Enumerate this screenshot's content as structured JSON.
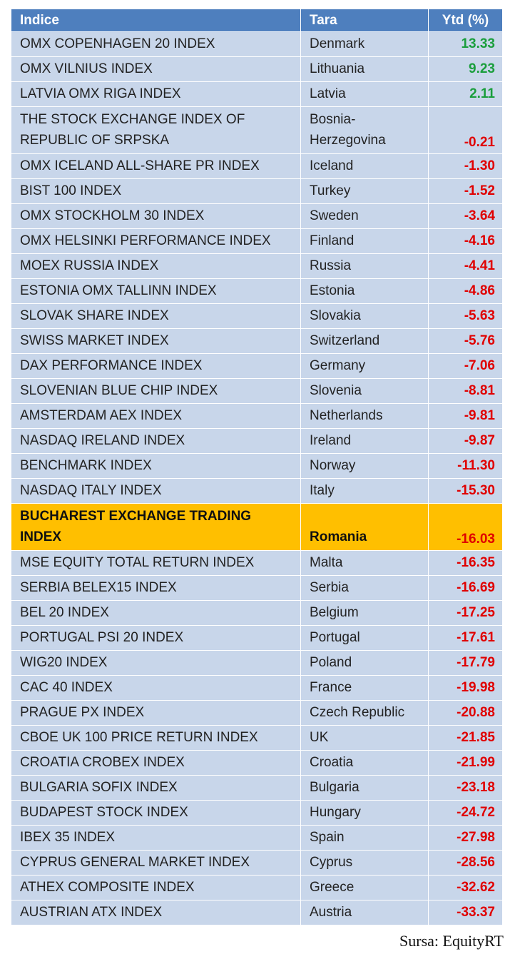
{
  "header": {
    "index_label": "Indice",
    "country_label": "Tara",
    "ytd_label": "Ytd (%)"
  },
  "colors": {
    "header_bg": "#4e7fbe",
    "row_bg": "#c8d6ea",
    "highlight_bg": "#ffbf00",
    "positive": "#1a9e3c",
    "negative": "#e00000"
  },
  "rows": [
    {
      "index": "OMX COPENHAGEN 20 INDEX",
      "country": "Denmark",
      "ytd": "13.33"
    },
    {
      "index": "OMX VILNIUS INDEX",
      "country": "Lithuania",
      "ytd": "9.23"
    },
    {
      "index": "LATVIA OMX RIGA INDEX",
      "country": "Latvia",
      "ytd": "2.11"
    },
    {
      "index": "THE STOCK EXCHANGE INDEX OF REPUBLIC OF SRPSKA",
      "country": "Bosnia-Herzegovina",
      "ytd": "-0.21"
    },
    {
      "index": "OMX ICELAND ALL-SHARE PR INDEX",
      "country": "Iceland",
      "ytd": "-1.30"
    },
    {
      "index": "BIST 100 INDEX",
      "country": "Turkey",
      "ytd": "-1.52"
    },
    {
      "index": "OMX STOCKHOLM 30 INDEX",
      "country": "Sweden",
      "ytd": "-3.64"
    },
    {
      "index": "OMX HELSINKI PERFORMANCE INDEX",
      "country": "Finland",
      "ytd": "-4.16"
    },
    {
      "index": "MOEX RUSSIA INDEX",
      "country": "Russia",
      "ytd": "-4.41"
    },
    {
      "index": "ESTONIA OMX TALLINN INDEX",
      "country": "Estonia",
      "ytd": "-4.86"
    },
    {
      "index": "SLOVAK SHARE INDEX",
      "country": "Slovakia",
      "ytd": "-5.63"
    },
    {
      "index": "SWISS MARKET INDEX",
      "country": "Switzerland",
      "ytd": "-5.76"
    },
    {
      "index": "DAX PERFORMANCE INDEX",
      "country": "Germany",
      "ytd": "-7.06"
    },
    {
      "index": "SLOVENIAN BLUE CHIP INDEX",
      "country": "Slovenia",
      "ytd": "-8.81"
    },
    {
      "index": "AMSTERDAM AEX INDEX",
      "country": "Netherlands",
      "ytd": "-9.81"
    },
    {
      "index": "NASDAQ IRELAND INDEX",
      "country": "Ireland",
      "ytd": "-9.87"
    },
    {
      "index": "BENCHMARK INDEX",
      "country": "Norway",
      "ytd": "-11.30"
    },
    {
      "index": "NASDAQ ITALY INDEX",
      "country": "Italy",
      "ytd": "-15.30"
    },
    {
      "index": "BUCHAREST EXCHANGE TRADING INDEX",
      "country": "Romania",
      "ytd": "-16.03",
      "highlight": true
    },
    {
      "index": "MSE EQUITY TOTAL RETURN INDEX",
      "country": "Malta",
      "ytd": "-16.35"
    },
    {
      "index": "SERBIA BELEX15 INDEX",
      "country": "Serbia",
      "ytd": "-16.69"
    },
    {
      "index": "BEL 20 INDEX",
      "country": "Belgium",
      "ytd": "-17.25"
    },
    {
      "index": "PORTUGAL PSI 20 INDEX",
      "country": "Portugal",
      "ytd": "-17.61"
    },
    {
      "index": "WIG20 INDEX",
      "country": "Poland",
      "ytd": "-17.79"
    },
    {
      "index": "CAC 40 INDEX",
      "country": "France",
      "ytd": "-19.98"
    },
    {
      "index": "PRAGUE PX INDEX",
      "country": "Czech Republic",
      "ytd": "-20.88"
    },
    {
      "index": "CBOE UK 100 PRICE RETURN INDEX",
      "country": "UK",
      "ytd": "-21.85"
    },
    {
      "index": "CROATIA CROBEX INDEX",
      "country": "Croatia",
      "ytd": "-21.99"
    },
    {
      "index": "BULGARIA SOFIX INDEX",
      "country": "Bulgaria",
      "ytd": "-23.18"
    },
    {
      "index": "BUDAPEST STOCK INDEX",
      "country": "Hungary",
      "ytd": "-24.72"
    },
    {
      "index": "IBEX 35 INDEX",
      "country": "Spain",
      "ytd": "-27.98"
    },
    {
      "index": "CYPRUS GENERAL MARKET INDEX",
      "country": "Cyprus",
      "ytd": "-28.56"
    },
    {
      "index": "ATHEX COMPOSITE INDEX",
      "country": "Greece",
      "ytd": "-32.62"
    },
    {
      "index": "AUSTRIAN ATX INDEX",
      "country": "Austria",
      "ytd": "-33.37"
    }
  ],
  "source": "Sursa: EquityRT",
  "chart_data": {
    "type": "table",
    "columns": [
      "Indice",
      "Tara",
      "Ytd (%)"
    ],
    "highlighted_row": "Romania"
  }
}
